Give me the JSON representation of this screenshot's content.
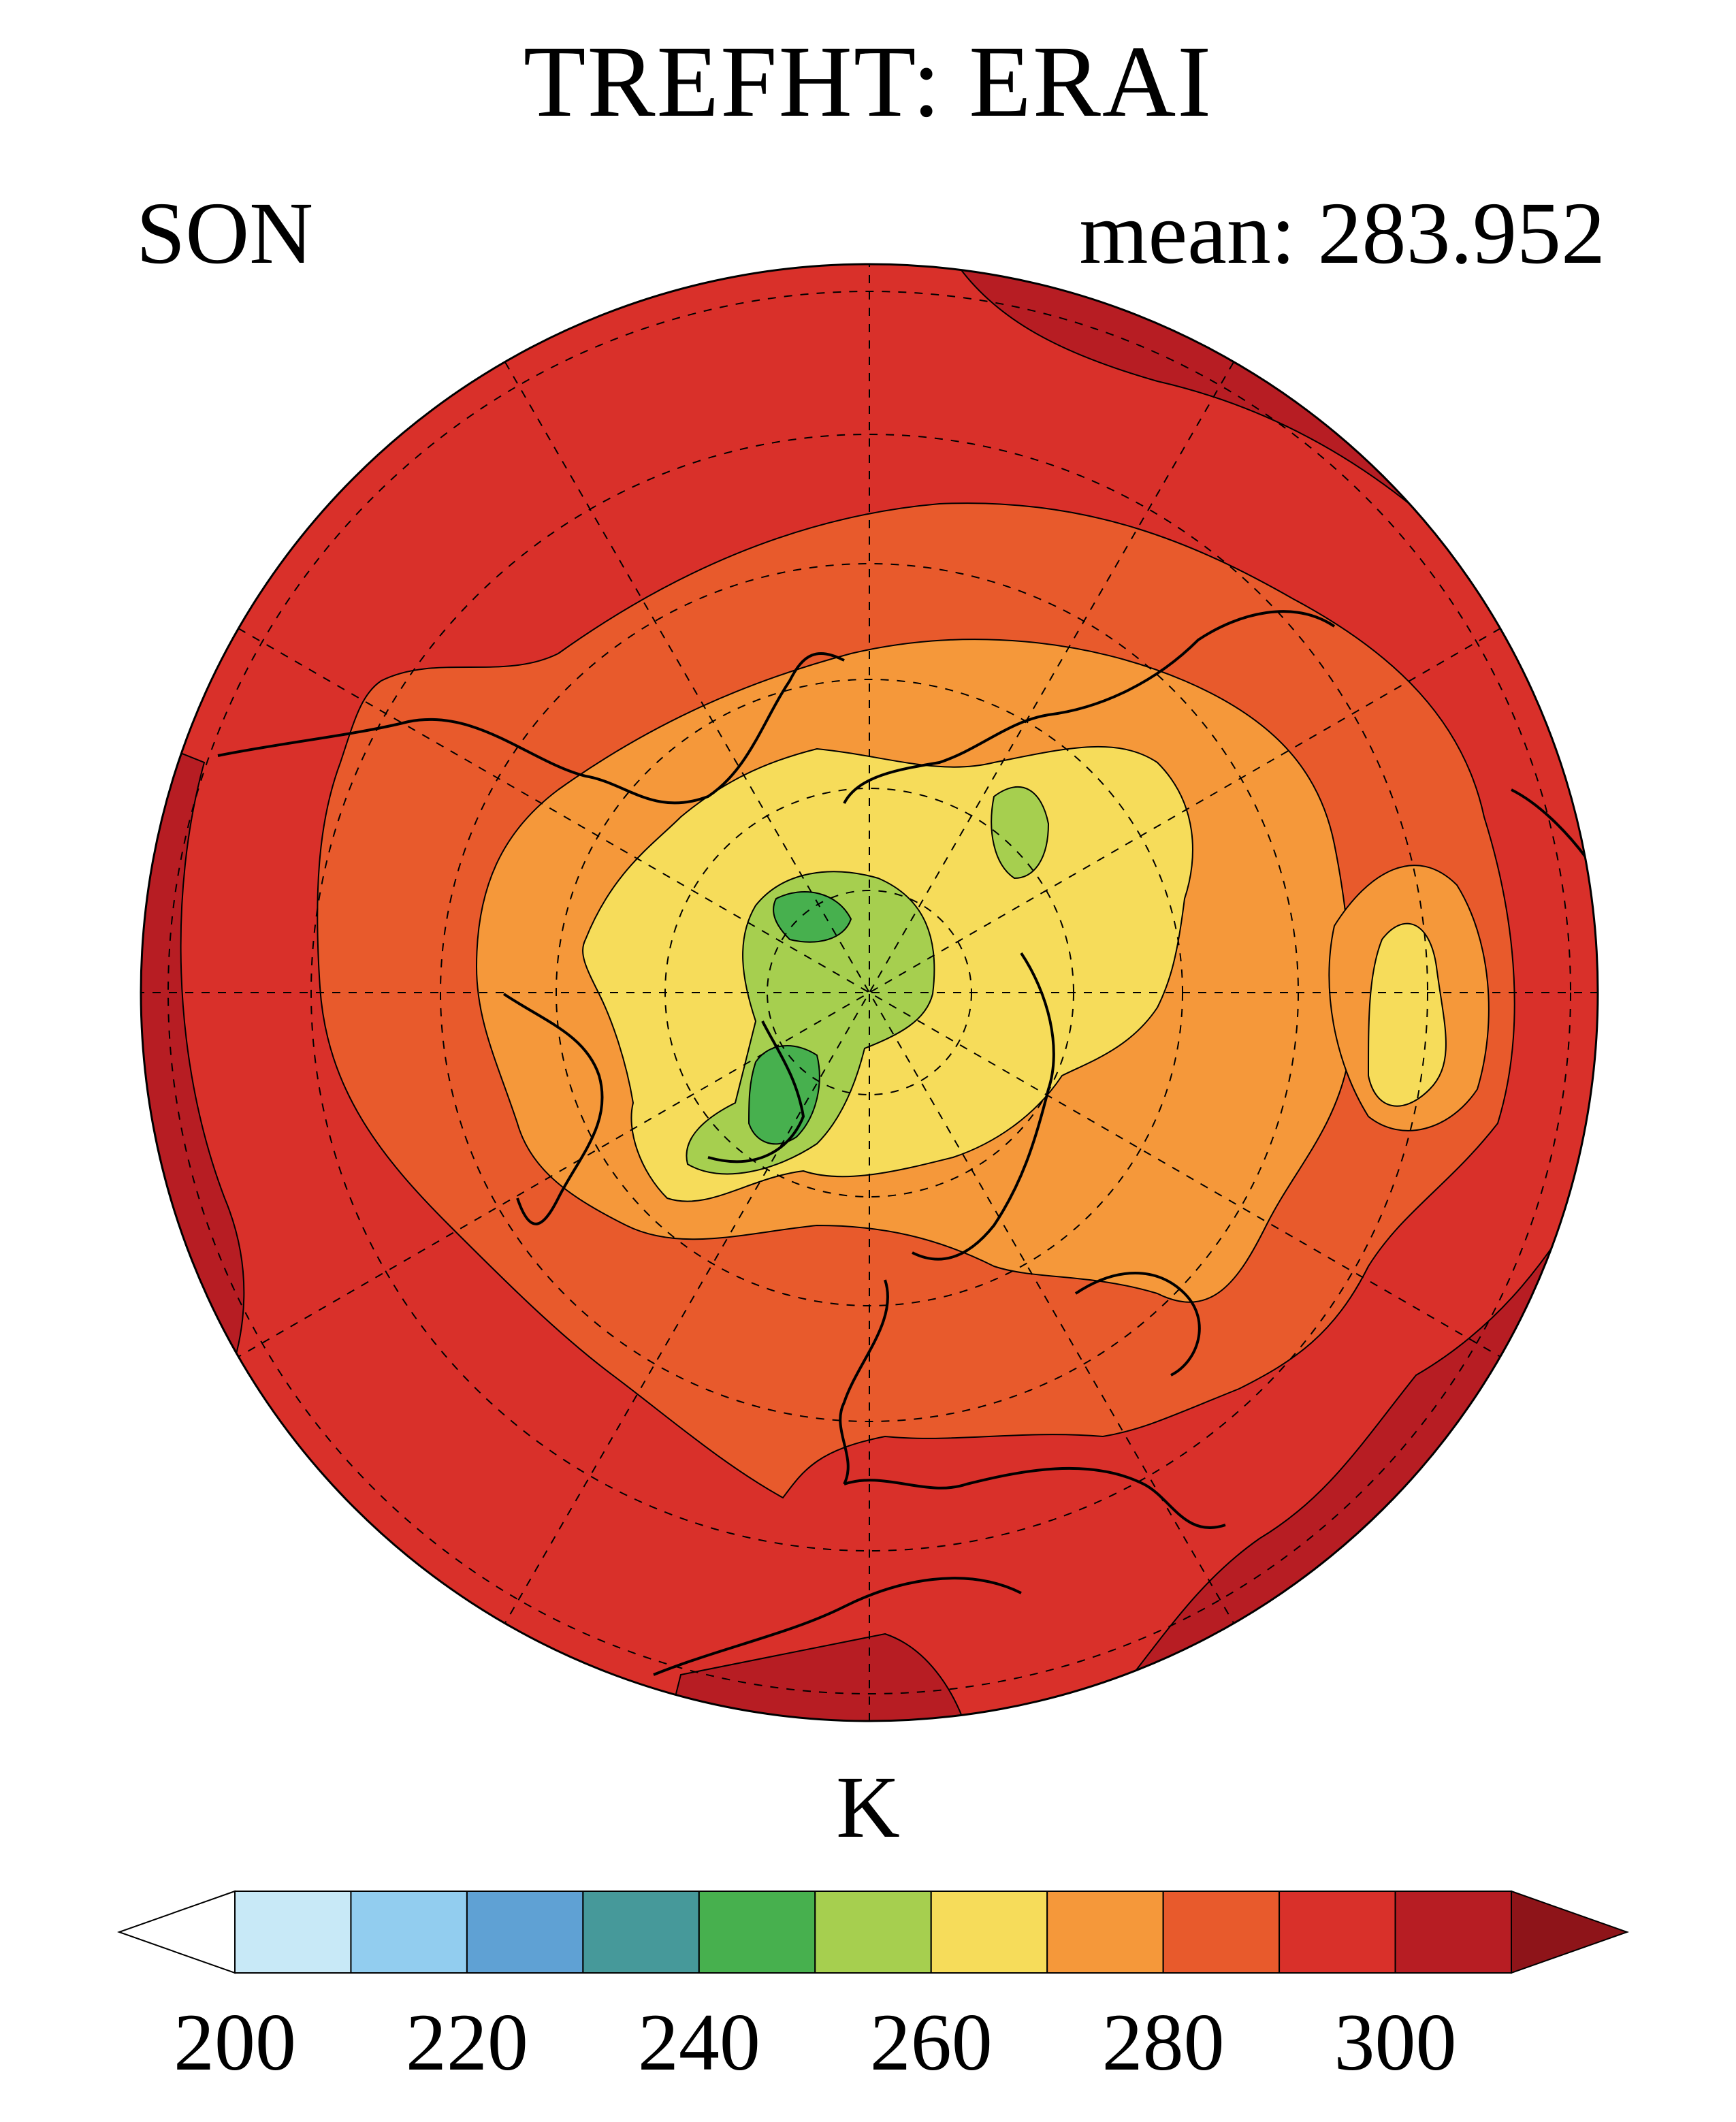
{
  "title": "TREFHT: ERAI",
  "season": "SON",
  "mean_label": "mean:",
  "mean_value": "283.952",
  "colorbar": {
    "unit": "K",
    "levels": [
      200,
      210,
      220,
      230,
      240,
      250,
      260,
      270,
      280,
      290,
      300,
      310
    ],
    "tick_labels": [
      "200",
      "220",
      "240",
      "260",
      "280",
      "300"
    ],
    "tick_values": [
      200,
      220,
      240,
      260,
      280,
      300
    ],
    "colors": [
      "#ffffff",
      "#c8e9f7",
      "#92cdef",
      "#5fa1d4",
      "#46999a",
      "#47b04e",
      "#a6cf4f",
      "#f6dc5a",
      "#f5983a",
      "#e85a2c",
      "#d9302a",
      "#b71d23",
      "#8e1419"
    ],
    "extend": "both"
  },
  "map": {
    "projection": "north-polar-stereographic",
    "fill_colors": {
      "outer": "#d9302a",
      "warm": "#b71d23",
      "mid": "#e85a2c",
      "cool": "#f5983a",
      "cold": "#f6dc5a",
      "colder": "#a6cf4f",
      "coldest": "#47b04e"
    },
    "gridlines": "dashed"
  }
}
